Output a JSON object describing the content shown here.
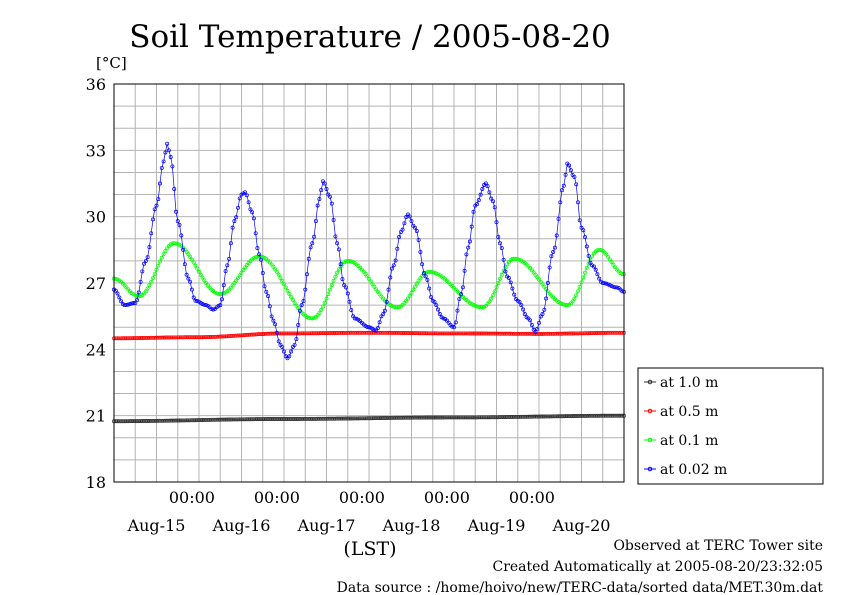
{
  "chart_data": {
    "type": "line",
    "title": "Soil Temperature / 2005-08-20",
    "ylabel": "[°C]",
    "xlabel": "(LST)",
    "ylim": [
      18,
      36
    ],
    "yticks": [
      18,
      21,
      24,
      27,
      30,
      33,
      36
    ],
    "xlim_hours": [
      0,
      144
    ],
    "x_time_labels": [
      "00:00",
      "00:00",
      "00:00",
      "00:00",
      "00:00"
    ],
    "x_date_labels": [
      "Aug-15",
      "Aug-16",
      "Aug-17",
      "Aug-18",
      "Aug-19",
      "Aug-20"
    ],
    "grid": true,
    "legend_position": "right",
    "series": [
      {
        "name": "at 1.0 m",
        "color": "#303030",
        "points": [
          [
            0,
            20.75
          ],
          [
            48,
            20.85
          ],
          [
            96,
            20.92
          ],
          [
            144,
            21.0
          ]
        ]
      },
      {
        "name": "at 0.5 m",
        "color": "#ff0000",
        "points": [
          [
            0,
            24.5
          ],
          [
            24,
            24.55
          ],
          [
            48,
            24.72
          ],
          [
            72,
            24.75
          ],
          [
            96,
            24.72
          ],
          [
            120,
            24.7
          ],
          [
            144,
            24.75
          ]
        ]
      },
      {
        "name": "at 0.1 m",
        "color": "#00ff00",
        "points": [
          [
            0,
            27.2
          ],
          [
            7,
            26.4
          ],
          [
            17,
            28.8
          ],
          [
            30,
            26.5
          ],
          [
            41,
            28.2
          ],
          [
            56,
            25.4
          ],
          [
            66,
            28.0
          ],
          [
            80,
            25.9
          ],
          [
            89,
            27.5
          ],
          [
            104,
            25.9
          ],
          [
            113,
            28.1
          ],
          [
            128,
            26.0
          ],
          [
            137,
            28.5
          ],
          [
            144,
            27.4
          ]
        ]
      },
      {
        "name": "at 0.02 m",
        "color": "#0000ff",
        "points": [
          [
            0,
            26.7
          ],
          [
            3,
            26.0
          ],
          [
            6,
            26.1
          ],
          [
            9,
            28.0
          ],
          [
            12,
            30.5
          ],
          [
            14,
            32.5
          ],
          [
            15,
            33.3
          ],
          [
            16,
            32.7
          ],
          [
            18,
            29.8
          ],
          [
            21,
            27.2
          ],
          [
            23,
            26.2
          ],
          [
            26,
            26.0
          ],
          [
            28,
            25.8
          ],
          [
            30,
            26.0
          ],
          [
            32,
            27.8
          ],
          [
            34,
            29.8
          ],
          [
            36,
            31.0
          ],
          [
            37,
            31.1
          ],
          [
            39,
            30.2
          ],
          [
            41,
            28.3
          ],
          [
            43,
            26.6
          ],
          [
            45,
            25.3
          ],
          [
            47,
            24.2
          ],
          [
            49,
            23.6
          ],
          [
            51,
            24.2
          ],
          [
            53,
            26.0
          ],
          [
            56,
            28.8
          ],
          [
            58,
            30.8
          ],
          [
            59,
            31.6
          ],
          [
            61,
            30.9
          ],
          [
            63,
            28.8
          ],
          [
            65,
            26.9
          ],
          [
            68,
            25.4
          ],
          [
            72,
            25.0
          ],
          [
            74,
            24.85
          ],
          [
            76,
            25.6
          ],
          [
            79,
            27.8
          ],
          [
            81,
            29.3
          ],
          [
            83,
            30.1
          ],
          [
            85,
            29.5
          ],
          [
            88,
            27.3
          ],
          [
            90,
            26.2
          ],
          [
            93,
            25.4
          ],
          [
            96,
            25.0
          ],
          [
            98,
            26.5
          ],
          [
            100,
            28.6
          ],
          [
            102,
            30.5
          ],
          [
            105,
            31.5
          ],
          [
            107,
            30.7
          ],
          [
            109,
            28.8
          ],
          [
            111,
            27.3
          ],
          [
            114,
            26.2
          ],
          [
            117,
            25.4
          ],
          [
            119,
            24.8
          ],
          [
            121,
            25.6
          ],
          [
            124,
            28.4
          ],
          [
            127,
            31.4
          ],
          [
            128,
            32.4
          ],
          [
            130,
            31.8
          ],
          [
            132,
            29.5
          ],
          [
            135,
            27.8
          ],
          [
            138,
            27.0
          ],
          [
            142,
            26.8
          ],
          [
            144,
            26.6
          ]
        ]
      }
    ]
  },
  "footer": {
    "line1": "Observed at TERC Tower site",
    "line2": "Created Automatically at 2005-08-20/23:32:05",
    "line3": "Data source : /home/hoivo/new/TERC-data/sorted  data/MET.30m.dat"
  }
}
